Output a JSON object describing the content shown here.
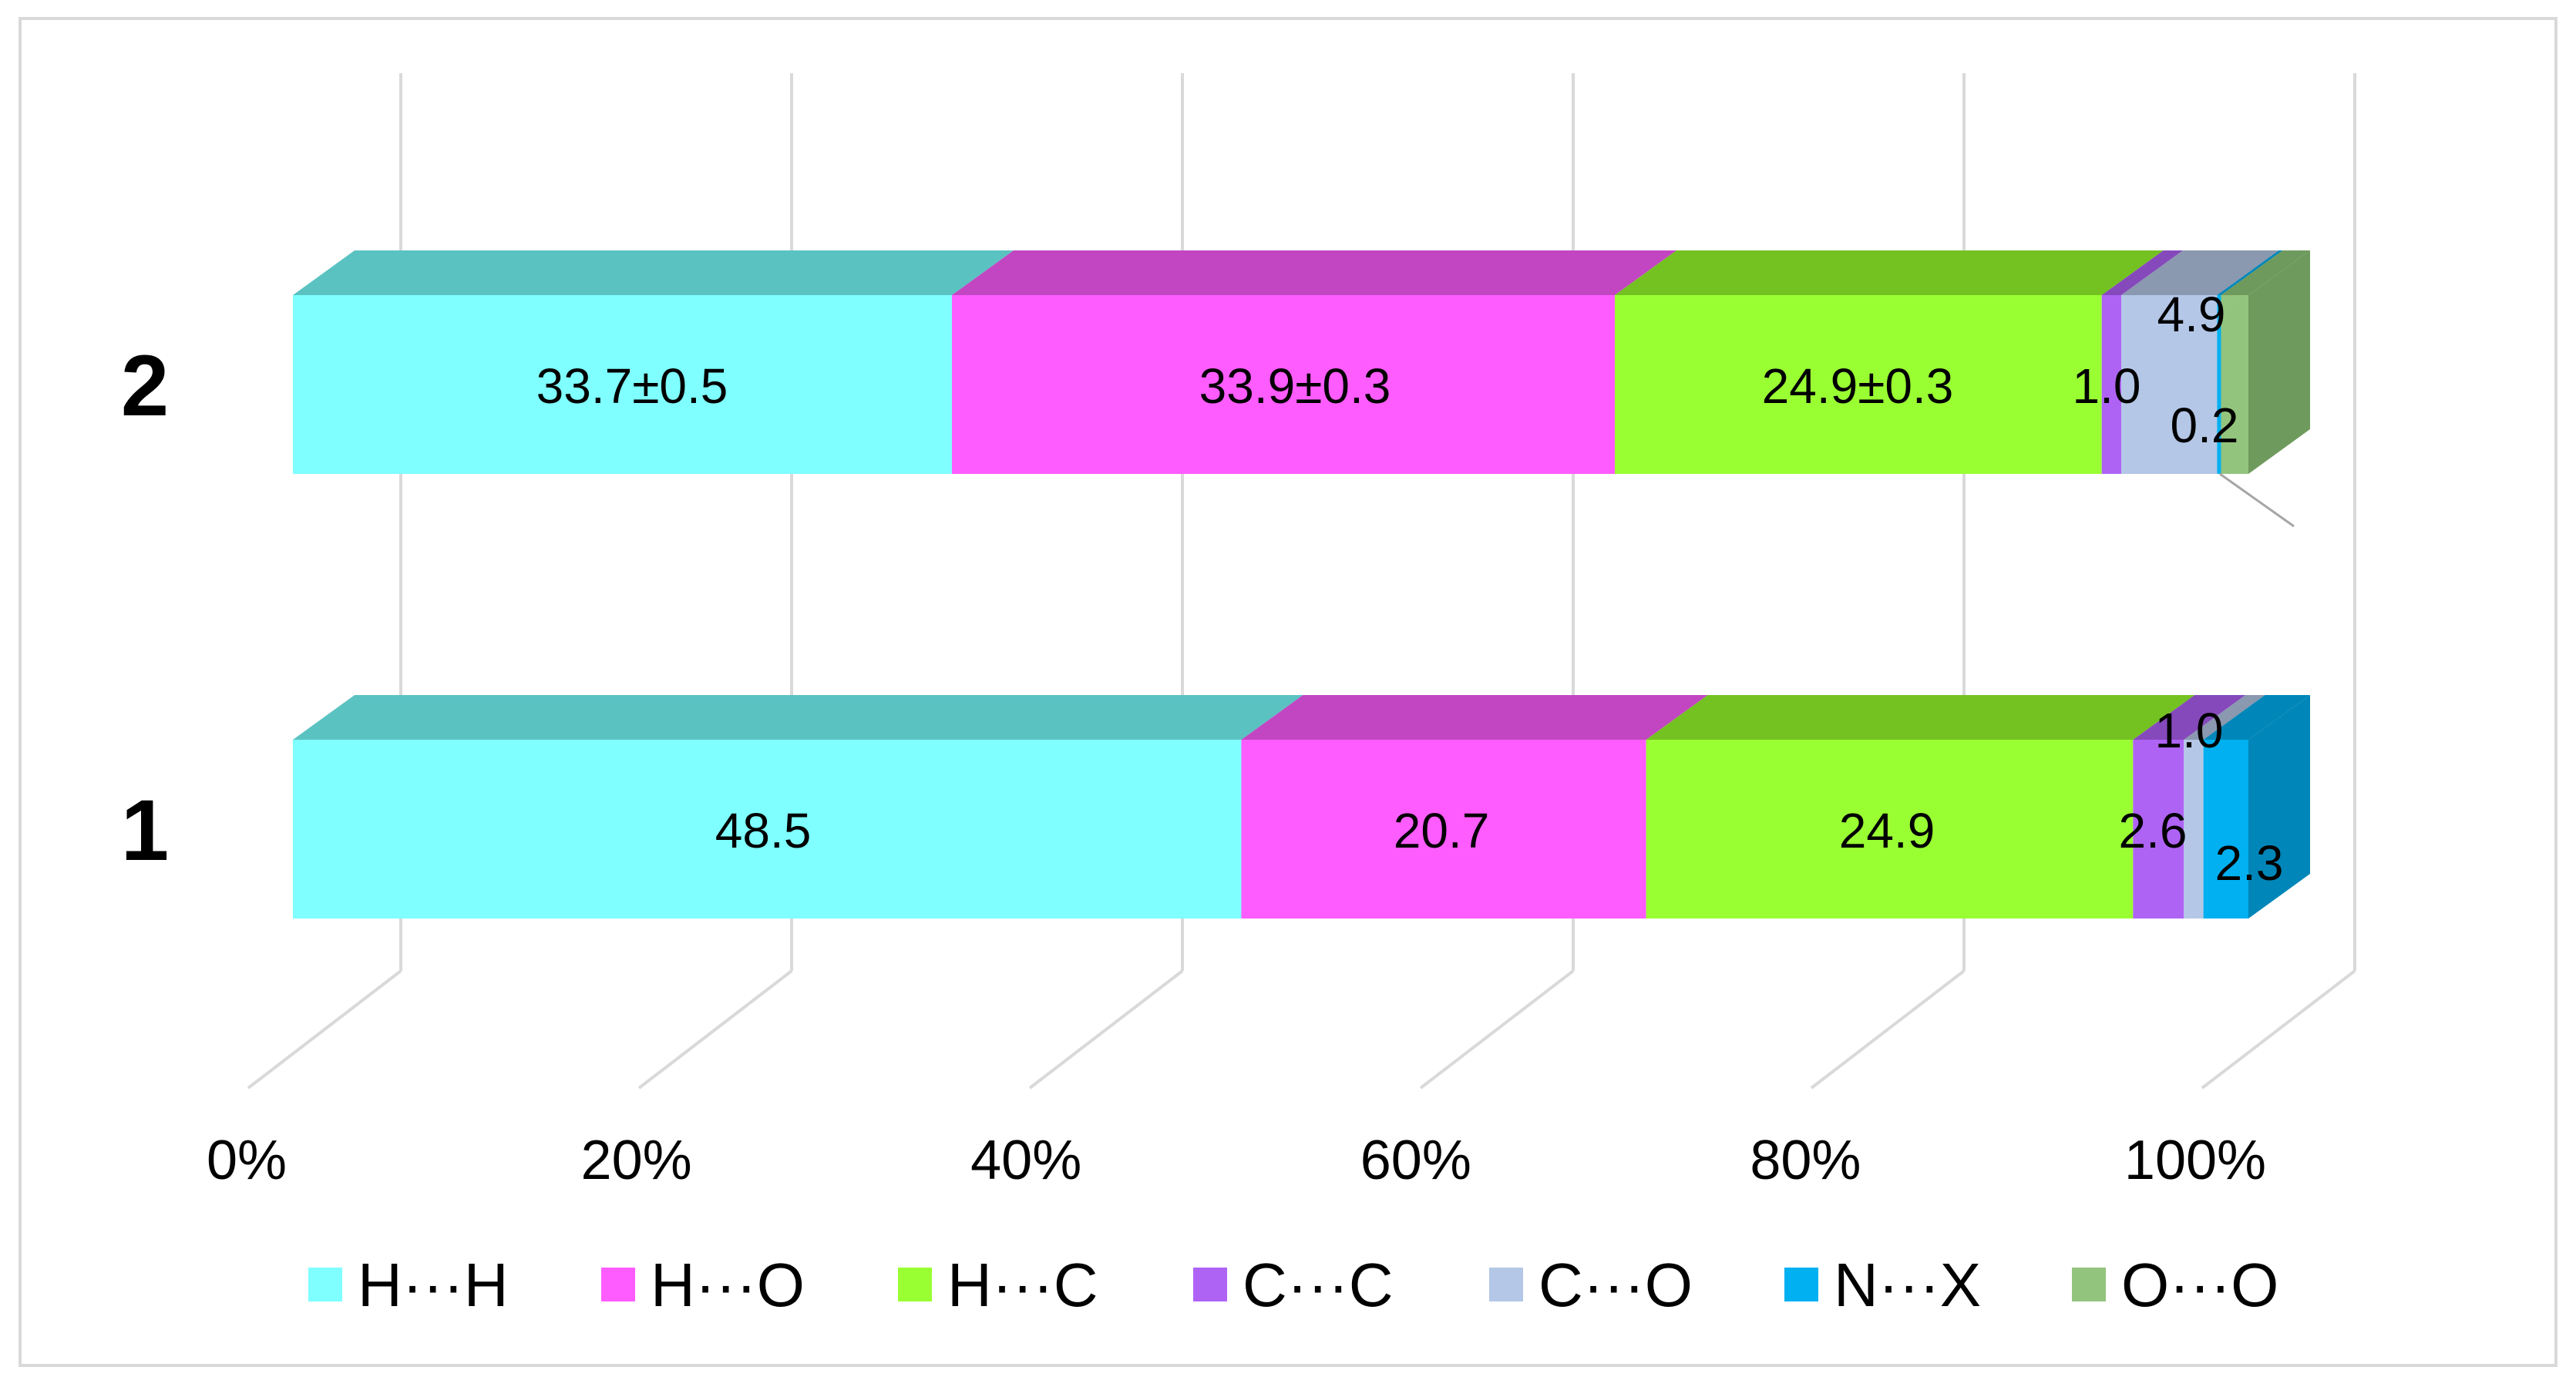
{
  "chart_data": {
    "type": "bar",
    "orientation": "horizontal",
    "stacked": "100%",
    "style": "3d",
    "categories": [
      "1",
      "2"
    ],
    "xlim": [
      0,
      100
    ],
    "x_tick_labels": [
      "0%",
      "20%",
      "40%",
      "60%",
      "80%",
      "100%"
    ],
    "grid": true,
    "legend_position": "bottom",
    "series": [
      {
        "name": "H···H",
        "color": "#7FFFFF",
        "top_color": "#5BC2C2",
        "values": [
          48.5,
          33.7
        ],
        "labels": [
          "48.5",
          "33.7±0.5"
        ]
      },
      {
        "name": "H···O",
        "color": "#FF5CFF",
        "top_color": "#C246C2",
        "values": [
          20.7,
          33.9
        ],
        "labels": [
          "20.7",
          "33.9±0.3"
        ]
      },
      {
        "name": "H···C",
        "color": "#99FF33",
        "top_color": "#74C221",
        "values": [
          24.9,
          24.9
        ],
        "labels": [
          "24.9",
          "24.9±0.3"
        ]
      },
      {
        "name": "C···C",
        "color": "#AF63F5",
        "top_color": "#8549BB",
        "values": [
          2.6,
          1.0
        ],
        "labels": [
          "2.6",
          "1.0"
        ]
      },
      {
        "name": "C···O",
        "color": "#B4C7E7",
        "top_color": "#8A98B0",
        "values": [
          1.0,
          4.9
        ],
        "labels": [
          "1.0",
          "4.9"
        ]
      },
      {
        "name": "N···X",
        "color": "#00B0F0",
        "top_color": "#0086B8",
        "values": [
          2.3,
          0.2
        ],
        "labels": [
          "2.3",
          "0.2"
        ]
      },
      {
        "name": "O···O",
        "color": "#93C47D",
        "top_color": "#6F9A5D",
        "values": [
          0,
          1.4
        ],
        "labels": [
          "",
          ""
        ]
      }
    ]
  }
}
